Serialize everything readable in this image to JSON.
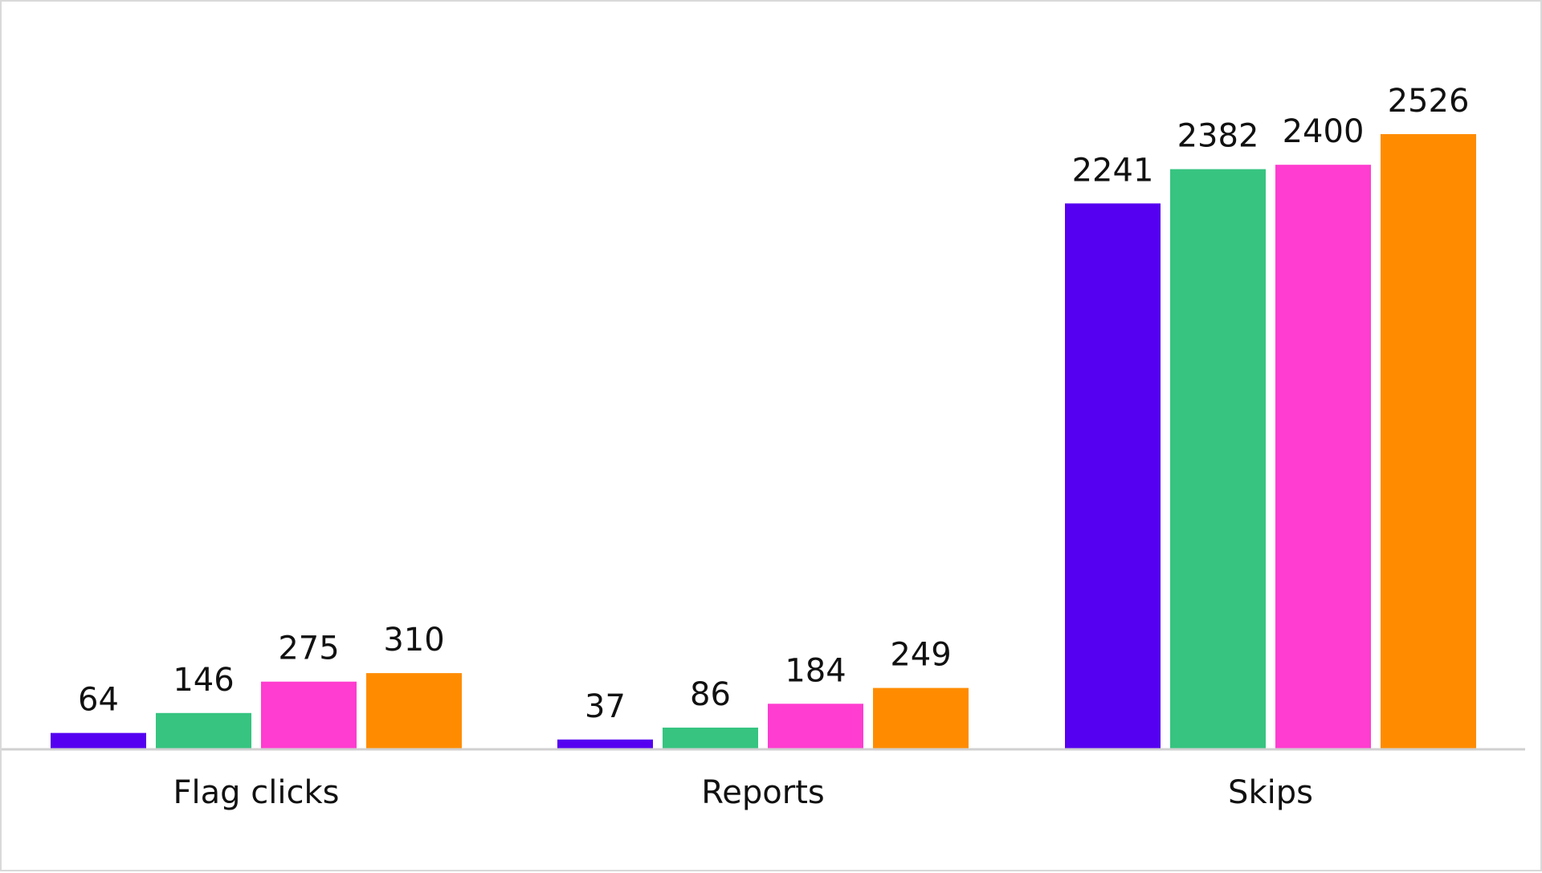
{
  "chart_data": {
    "type": "bar",
    "categories": [
      "Flag clicks",
      "Reports",
      "Skips"
    ],
    "series": [
      {
        "color": "#5500F0",
        "values": [
          64,
          37,
          2241
        ]
      },
      {
        "color": "#36C480",
        "values": [
          146,
          86,
          2382
        ]
      },
      {
        "color": "#FF3DD0",
        "values": [
          275,
          184,
          2400
        ]
      },
      {
        "color": "#FF8C00",
        "values": [
          310,
          249,
          2526
        ]
      }
    ],
    "title": "",
    "xlabel": "",
    "ylabel": "",
    "ylim": [
      0,
      3000
    ],
    "grid": false,
    "legend": "none",
    "data_labels": true
  }
}
